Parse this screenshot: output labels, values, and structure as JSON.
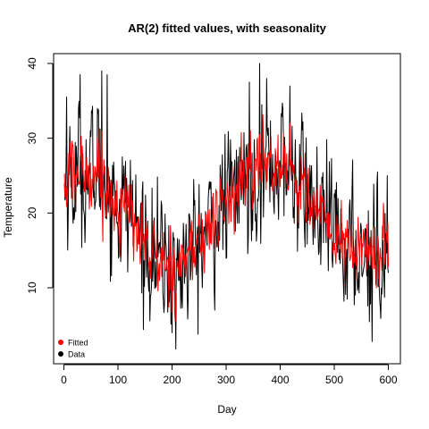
{
  "chart_data": {
    "type": "line",
    "title": "AR(2) fitted values, with seasonality",
    "xlabel": "Day",
    "ylabel": "Temperature",
    "xlim": [
      0,
      600
    ],
    "ylim": [
      2,
      41
    ],
    "xticks": [
      0,
      100,
      200,
      300,
      400,
      500,
      600
    ],
    "yticks": [
      10,
      20,
      30,
      40
    ],
    "grid": false,
    "legend_position": "bottom-left",
    "legend": [
      {
        "label": "Fitted",
        "color": "#ff0000"
      },
      {
        "label": "Data",
        "color": "#000000"
      }
    ],
    "series": [
      {
        "name": "Data",
        "color": "#000000",
        "knots": [
          [
            1,
            23
          ],
          [
            10,
            25
          ],
          [
            20,
            24.5
          ],
          [
            30,
            25.5
          ],
          [
            45,
            25
          ],
          [
            60,
            26
          ],
          [
            75,
            24
          ],
          [
            90,
            22
          ],
          [
            110,
            21
          ],
          [
            130,
            19
          ],
          [
            150,
            16
          ],
          [
            170,
            14
          ],
          [
            190,
            13
          ],
          [
            205,
            12.5
          ],
          [
            220,
            13.5
          ],
          [
            240,
            15
          ],
          [
            260,
            17
          ],
          [
            280,
            19
          ],
          [
            300,
            21.5
          ],
          [
            320,
            23.5
          ],
          [
            340,
            24.5
          ],
          [
            360,
            26
          ],
          [
            380,
            26.5
          ],
          [
            400,
            26.5
          ],
          [
            420,
            25.5
          ],
          [
            440,
            24
          ],
          [
            460,
            21
          ],
          [
            480,
            18.5
          ],
          [
            500,
            17
          ],
          [
            520,
            15.5
          ],
          [
            540,
            15
          ],
          [
            560,
            15
          ],
          [
            580,
            14.5
          ],
          [
            600,
            15.5
          ]
        ],
        "noise_sd": 4.2,
        "spikes": [
          [
            5,
            35.5
          ],
          [
            30,
            38.5
          ],
          [
            62,
            34
          ],
          [
            70,
            39
          ],
          [
            80,
            38.5
          ],
          [
            207,
            1.8
          ],
          [
            200,
            4
          ],
          [
            343,
            37.5
          ],
          [
            362,
            40
          ],
          [
            375,
            38
          ],
          [
            418,
            37
          ],
          [
            570,
            2.8
          ],
          [
            580,
            25.5
          ],
          [
            598,
            25
          ],
          [
            600,
            12
          ]
        ]
      },
      {
        "name": "Fitted",
        "color": "#ff0000",
        "knots": [
          [
            1,
            23
          ],
          [
            10,
            25
          ],
          [
            20,
            24.5
          ],
          [
            30,
            26
          ],
          [
            45,
            25
          ],
          [
            60,
            26
          ],
          [
            75,
            24
          ],
          [
            90,
            22
          ],
          [
            110,
            21
          ],
          [
            130,
            19
          ],
          [
            150,
            16
          ],
          [
            170,
            14
          ],
          [
            190,
            13
          ],
          [
            205,
            13
          ],
          [
            220,
            14
          ],
          [
            240,
            15
          ],
          [
            260,
            17
          ],
          [
            280,
            19
          ],
          [
            300,
            21.5
          ],
          [
            320,
            23.5
          ],
          [
            340,
            24.5
          ],
          [
            360,
            26
          ],
          [
            380,
            26.5
          ],
          [
            400,
            26.5
          ],
          [
            420,
            25.5
          ],
          [
            440,
            24
          ],
          [
            460,
            21
          ],
          [
            480,
            18.5
          ],
          [
            500,
            17
          ],
          [
            520,
            15.5
          ],
          [
            540,
            15
          ],
          [
            560,
            15
          ],
          [
            580,
            14.5
          ],
          [
            600,
            15.5
          ]
        ],
        "noise_sd": 2.3,
        "spikes": [
          [
            12,
            29.5
          ],
          [
            62,
            30
          ],
          [
            70,
            31
          ],
          [
            345,
            31
          ],
          [
            362,
            30.5
          ],
          [
            418,
            32
          ]
        ]
      }
    ]
  }
}
